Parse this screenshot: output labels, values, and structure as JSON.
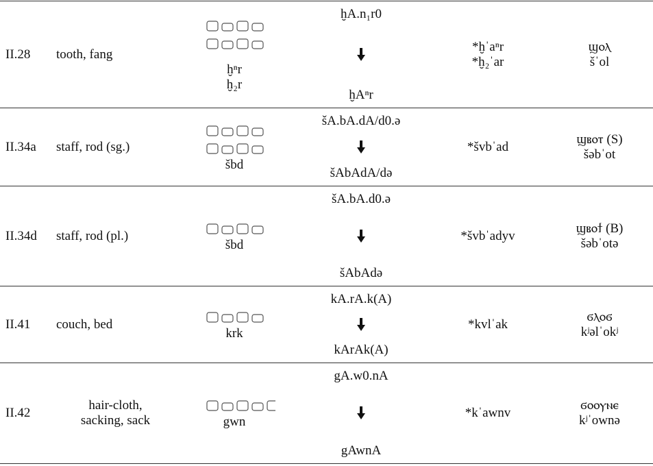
{
  "table": {
    "rows": [
      {
        "id": "II.28",
        "meaning": [
          "tooth, fang"
        ],
        "translit": [
          "ḫⁿr",
          "ḫ₂r"
        ],
        "evolution": [
          "ḫA.n₁r0",
          "ḫAⁿr"
        ],
        "reconstruction": [
          "*ḫˈaⁿr",
          "*ḫ₂ˈar"
        ],
        "coptic": [
          "ϣⲟⲗ",
          "šˈol"
        ]
      },
      {
        "id": "II.34a",
        "meaning": [
          "staff, rod (sg.)"
        ],
        "translit": [
          "šbd"
        ],
        "evolution": [
          "šA.bA.dA/d0.ə",
          "šAbAdA/də"
        ],
        "reconstruction": [
          "*švbˈad"
        ],
        "coptic": [
          "ϣⲃⲟⲧ (S)",
          "šəbˈot"
        ]
      },
      {
        "id": "II.34d",
        "meaning": [
          "staff, rod (pl.)"
        ],
        "translit": [
          "šbd"
        ],
        "evolution": [
          "šA.bA.d0.ə",
          "šAbAdə"
        ],
        "reconstruction": [
          "*švbˈadyv"
        ],
        "coptic": [
          "ϣⲃⲟϯ (B)",
          "šəbˈotə"
        ]
      },
      {
        "id": "II.41",
        "meaning": [
          "couch, bed"
        ],
        "translit": [
          "krk"
        ],
        "evolution": [
          "kA.rA.k(A)",
          "kArAk(A)"
        ],
        "reconstruction": [
          "*kvlˈak"
        ],
        "coptic": [
          "ϭⲗⲟϭ",
          "kʲəlˈokʲ"
        ]
      },
      {
        "id": "II.42",
        "meaning": [
          "hair-cloth,",
          "sacking, sack"
        ],
        "translit": [
          "gwn"
        ],
        "evolution": [
          "gA.w0.nA",
          "gAwnA"
        ],
        "reconstruction": [
          "*kˈawnv"
        ],
        "coptic": [
          "ϭⲟⲟⲩⲛⲉ",
          "kʲˈownə"
        ]
      }
    ]
  }
}
